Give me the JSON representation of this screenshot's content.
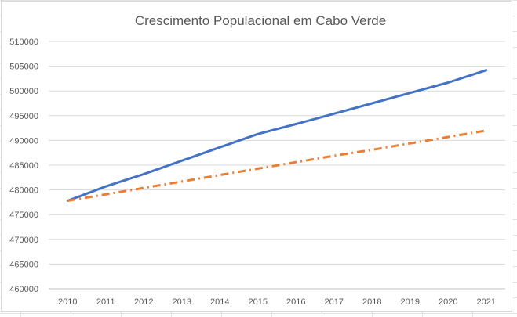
{
  "chart_data": {
    "type": "line",
    "title": "Crescimento Populacional em Cabo Verde",
    "xlabel": "",
    "ylabel": "",
    "categories": [
      "2010",
      "2011",
      "2012",
      "2013",
      "2014",
      "2015",
      "2016",
      "2017",
      "2018",
      "2019",
      "2020",
      "2021"
    ],
    "ylim": [
      460000,
      510000
    ],
    "yticks": [
      460000,
      465000,
      470000,
      475000,
      480000,
      485000,
      490000,
      495000,
      500000,
      505000,
      510000
    ],
    "grid": true,
    "legend": "none",
    "series": [
      {
        "values": [
          477800,
          480700,
          483200,
          485900,
          488600,
          491300,
          493300,
          495400,
          497500,
          499600,
          501700,
          504200
        ],
        "color": "#4472c4",
        "style": "solid"
      },
      {
        "values": [
          477800,
          479100,
          480400,
          481700,
          483000,
          484300,
          485600,
          486900,
          488100,
          489400,
          490700,
          492000
        ],
        "color": "#ed7d31",
        "style": "dash-dot"
      }
    ]
  }
}
